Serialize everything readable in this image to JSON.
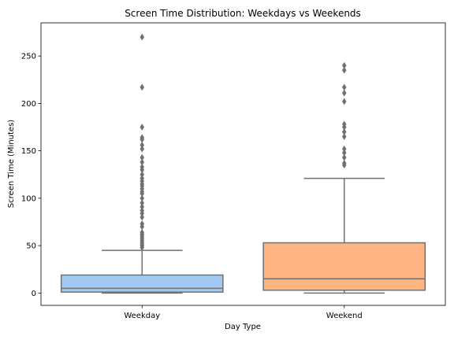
{
  "chart_data": {
    "type": "box",
    "title": "Screen Time Distribution: Weekdays vs Weekends",
    "xlabel": "Day Type",
    "ylabel": "Screen Time (Minutes)",
    "ylim": [
      -13,
      285
    ],
    "yticks": [
      0,
      50,
      100,
      150,
      200,
      250
    ],
    "grid": false,
    "legend": "none",
    "categories": [
      "Weekday",
      "Weekend"
    ],
    "boxes": [
      {
        "category": "Weekday",
        "color": "#a1c9f4",
        "whisker_low": 0,
        "q1": 1,
        "median": 5,
        "q3": 19,
        "whisker_high": 45,
        "outliers": [
          48,
          50,
          51,
          53,
          55,
          57,
          59,
          61,
          62,
          64,
          70,
          73,
          80,
          84,
          87,
          91,
          95,
          100,
          105,
          107,
          110,
          113,
          115,
          118,
          121,
          125,
          130,
          133,
          138,
          143,
          152,
          156,
          162,
          164,
          175,
          217,
          270
        ]
      },
      {
        "category": "Weekend",
        "color": "#ffb482",
        "whisker_low": 0,
        "q1": 3,
        "median": 15,
        "q3": 53,
        "whisker_high": 121,
        "outliers": [
          135,
          137,
          143,
          148,
          152,
          165,
          170,
          175,
          178,
          202,
          211,
          217,
          235,
          240
        ]
      }
    ]
  }
}
